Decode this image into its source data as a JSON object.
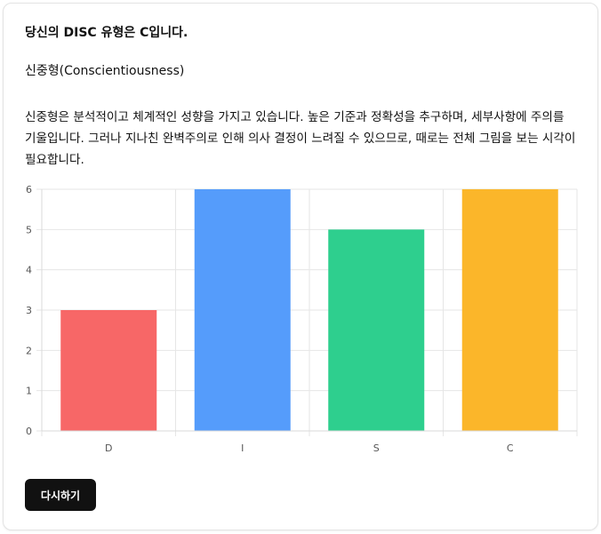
{
  "result": {
    "title": "당신의 DISC 유형은 C입니다.",
    "type_name": "신중형(Conscientiousness)",
    "description": "신중형은 분석적이고 체계적인 성향을 가지고 있습니다. 높은 기준과 정확성을 추구하며, 세부사항에 주의를 기울입니다. 그러나 지나친 완벽주의로 인해 의사 결정이 느려질 수 있으므로, 때로는 전체 그림을 보는 시각이 필요합니다."
  },
  "actions": {
    "retry_label": "다시하기"
  },
  "chart_data": {
    "type": "bar",
    "categories": [
      "D",
      "I",
      "S",
      "C"
    ],
    "values": [
      3,
      6,
      5,
      6
    ],
    "colors": [
      "#f76767",
      "#559cfb",
      "#2ecf8e",
      "#fbb62a"
    ],
    "ylim": [
      0,
      6
    ],
    "yticks": [
      "0",
      "1",
      "2",
      "3",
      "4",
      "5",
      "6"
    ],
    "grid": true,
    "legend": "none"
  }
}
